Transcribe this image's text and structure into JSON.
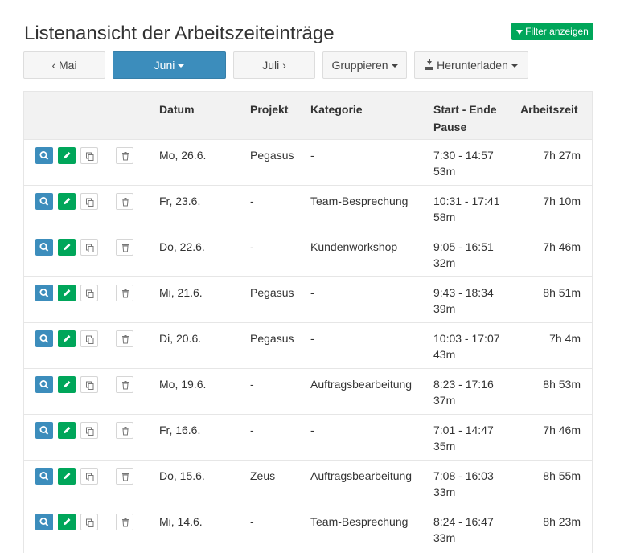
{
  "header": {
    "title": "Listenansicht der Arbeitszeiteinträge",
    "filter_label": "Filter anzeigen"
  },
  "toolbar": {
    "prev_month": "‹ Mai",
    "current_month": "Juni",
    "next_month": "Juli ›",
    "group_label": "Gruppieren",
    "download_label": "Herunterladen"
  },
  "table": {
    "columns": {
      "date": "Datum",
      "project": "Projekt",
      "category": "Kategorie",
      "start_end": "Start - Ende",
      "pause": "Pause",
      "worktime": "Arbeitszeit"
    },
    "rows": [
      {
        "date": "Mo, 26.6.",
        "project": "Pegasus",
        "category": "-",
        "time": "7:30 - 14:57",
        "pause": "53m",
        "worktime": "7h 27m"
      },
      {
        "date": "Fr, 23.6.",
        "project": "-",
        "category": "Team-Besprechung",
        "time": "10:31 - 17:41",
        "pause": "58m",
        "worktime": "7h 10m"
      },
      {
        "date": "Do, 22.6.",
        "project": "-",
        "category": "Kundenworkshop",
        "time": "9:05 - 16:51",
        "pause": "32m",
        "worktime": "7h 46m"
      },
      {
        "date": "Mi, 21.6.",
        "project": "Pegasus",
        "category": "-",
        "time": "9:43 - 18:34",
        "pause": "39m",
        "worktime": "8h 51m"
      },
      {
        "date": "Di, 20.6.",
        "project": "Pegasus",
        "category": "-",
        "time": "10:03 - 17:07",
        "pause": "43m",
        "worktime": "7h 4m"
      },
      {
        "date": "Mo, 19.6.",
        "project": "-",
        "category": "Auftragsbearbeitung",
        "time": "8:23 - 17:16",
        "pause": "37m",
        "worktime": "8h 53m"
      },
      {
        "date": "Fr, 16.6.",
        "project": "-",
        "category": "-",
        "time": "7:01 - 14:47",
        "pause": "35m",
        "worktime": "7h 46m"
      },
      {
        "date": "Do, 15.6.",
        "project": "Zeus",
        "category": "Auftragsbearbeitung",
        "time": "7:08 - 16:03",
        "pause": "33m",
        "worktime": "8h 55m"
      },
      {
        "date": "Mi, 14.6.",
        "project": "-",
        "category": "Team-Besprechung",
        "time": "8:24 - 16:47",
        "pause": "33m",
        "worktime": "8h 23m"
      }
    ]
  },
  "colors": {
    "primary": "#3c8dbc",
    "success": "#00a65a",
    "header_bg": "#f2f2f2"
  },
  "icons": {
    "view": "search-icon",
    "edit": "pencil-icon",
    "copy": "copy-icon",
    "delete": "trash-icon",
    "filter": "funnel-icon",
    "download": "download-icon"
  }
}
